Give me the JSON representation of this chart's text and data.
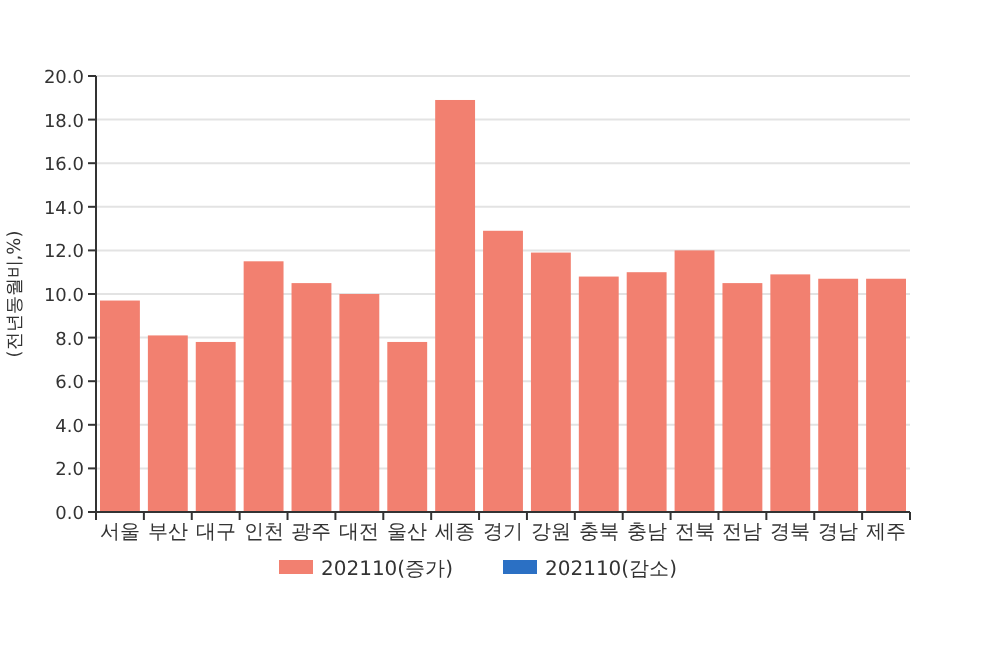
{
  "chart_data": {
    "type": "bar",
    "ylabel": "(전년동월비,%)",
    "categories": [
      "서울",
      "부산",
      "대구",
      "인천",
      "광주",
      "대전",
      "울산",
      "세종",
      "경기",
      "강원",
      "충북",
      "충남",
      "전북",
      "전남",
      "경북",
      "경남",
      "제주"
    ],
    "series": [
      {
        "name": "202110(증가)",
        "color": "#f28070",
        "values": [
          9.7,
          8.1,
          7.8,
          11.5,
          10.5,
          10.0,
          7.8,
          18.9,
          12.9,
          11.9,
          10.8,
          11.0,
          12.0,
          10.5,
          10.9,
          10.7,
          10.7
        ]
      },
      {
        "name": "202110(감소)",
        "color": "#2b70c4",
        "values": [
          null,
          null,
          null,
          null,
          null,
          null,
          null,
          null,
          null,
          null,
          null,
          null,
          null,
          null,
          null,
          null,
          null
        ]
      }
    ],
    "ylim": [
      0,
      20
    ],
    "yticks": [
      {
        "value": 0,
        "label": "0.0"
      },
      {
        "value": 2,
        "label": "2.0"
      },
      {
        "value": 4,
        "label": "4.0"
      },
      {
        "value": 6,
        "label": "6.0"
      },
      {
        "value": 8,
        "label": "8.0"
      },
      {
        "value": 10,
        "label": "10.0"
      },
      {
        "value": 12,
        "label": "12.0"
      },
      {
        "value": 14,
        "label": "14.0"
      },
      {
        "value": 16,
        "label": "16.0"
      },
      {
        "value": 18,
        "label": "18.0"
      },
      {
        "value": 20,
        "label": "20.0"
      }
    ],
    "grid": "y",
    "legend": "bottom"
  }
}
